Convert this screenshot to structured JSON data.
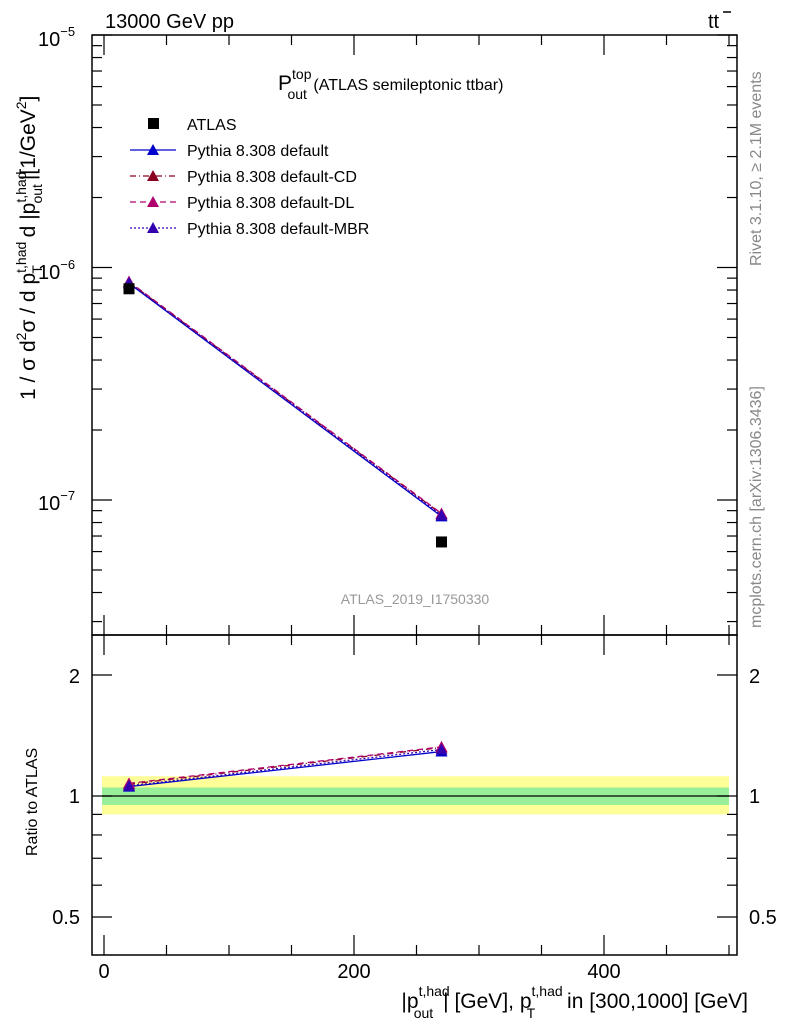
{
  "header": {
    "left": "13000 GeV pp",
    "right_main": "tt",
    "right_bar": "̄"
  },
  "side_text": {
    "rivet": "Rivet 3.1.10, ≥ 2.1M events",
    "mcplots": "mcplots.cern.ch [arXiv:1306.3436]"
  },
  "plot_title": {
    "main": "P",
    "sup": "top",
    "sub": "out",
    "rest": " (ATLAS semileptonic ttbar)"
  },
  "watermark": "ATLAS_2019_I1750330",
  "y_axis_title": {
    "p1": "1 / σ d",
    "p1_sup": "2",
    "p2": "σ / d p",
    "p2_sup": "t,had",
    "p2_sub": "T",
    "p3": " d |p",
    "p3_sup": "t,had",
    "p3_sub": "out",
    "p4": "|[1/GeV",
    "p4_sup": "2",
    "p5": "]"
  },
  "x_axis_title": {
    "p1": "|p",
    "p1_sup": "t,had",
    "p1_sub": "out",
    "p2": "| [GeV], p",
    "p2_sup": "t,had",
    "p2_sub": "T",
    "p3": " in [300,1000] [GeV]"
  },
  "ratio_ylabel": "Ratio to ATLAS",
  "main_ticks": [
    {
      "base": "10",
      "exp": "−5"
    },
    {
      "base": "10",
      "exp": "−6"
    },
    {
      "base": "10",
      "exp": "−7"
    }
  ],
  "ratio_ticks": [
    "2",
    "1",
    "0.5"
  ],
  "x_ticks": [
    "0",
    "200",
    "400"
  ],
  "legend": [
    {
      "label": "ATLAS"
    },
    {
      "label": "Pythia 8.308 default"
    },
    {
      "label": "Pythia 8.308 default-CD"
    },
    {
      "label": "Pythia 8.308 default-DL"
    },
    {
      "label": "Pythia 8.308 default-MBR"
    }
  ],
  "colors": {
    "data": "#000000",
    "default": "#0000cc",
    "cd": "#8b0020",
    "dl": "#b0006e",
    "mbr": "#3300b0",
    "band_inner": "#99ee99",
    "band_outer": "#ffff99"
  },
  "chart_data": {
    "type": "line",
    "x_scale": "linear",
    "y_scale": "log",
    "xlim": [
      0,
      500
    ],
    "ylim": [
      2.7e-08,
      1e-05
    ],
    "ratio_ylim": [
      0.4,
      2.4
    ],
    "ratio_scale": "log",
    "x": [
      20,
      270
    ],
    "series": [
      {
        "name": "ATLAS",
        "style": "markers",
        "values": [
          8.1e-07,
          6.6e-08
        ]
      },
      {
        "name": "Pythia 8.308 default",
        "style": "solid",
        "values": [
          8.55e-07,
          8.5e-08
        ]
      },
      {
        "name": "Pythia 8.308 default-CD",
        "style": "dashdot",
        "values": [
          8.65e-07,
          8.7e-08
        ]
      },
      {
        "name": "Pythia 8.308 default-DL",
        "style": "dashed",
        "values": [
          8.7e-07,
          8.75e-08
        ]
      },
      {
        "name": "Pythia 8.308 default-MBR",
        "style": "dotted",
        "values": [
          8.6e-07,
          8.6e-08
        ]
      }
    ],
    "ratio": [
      {
        "name": "Pythia 8.308 default",
        "values": [
          1.055,
          1.29
        ]
      },
      {
        "name": "Pythia 8.308 default-CD",
        "values": [
          1.07,
          1.32
        ]
      },
      {
        "name": "Pythia 8.308 default-DL",
        "values": [
          1.075,
          1.325
        ]
      },
      {
        "name": "Pythia 8.308 default-MBR",
        "values": [
          1.06,
          1.305
        ]
      }
    ],
    "ratio_band_inner": [
      0.95,
      1.05
    ],
    "ratio_band_outer": [
      0.9,
      1.12
    ],
    "grid": false,
    "legend_position": "top-left"
  }
}
